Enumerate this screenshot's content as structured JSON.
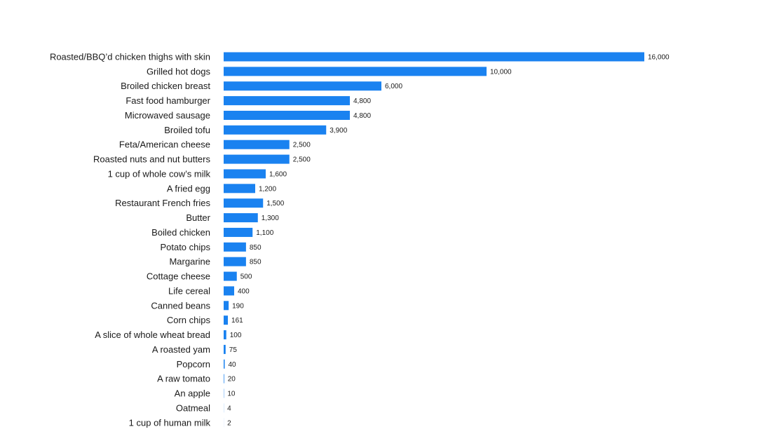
{
  "chart_data": {
    "type": "bar",
    "orientation": "horizontal",
    "categories": [
      "Roasted/BBQ’d chicken thighs with skin",
      "Grilled hot dogs",
      "Broiled chicken breast",
      "Fast food hamburger",
      "Microwaved sausage",
      "Broiled tofu",
      "Feta/American cheese",
      "Roasted nuts and nut butters",
      "1 cup of whole cow’s milk",
      "A fried egg",
      "Restaurant French fries",
      "Butter",
      "Boiled chicken",
      "Potato chips",
      "Margarine",
      "Cottage cheese",
      "Life cereal",
      "Canned beans",
      "Corn chips",
      "A slice of whole wheat bread",
      "A roasted yam",
      "Popcorn",
      "A raw tomato",
      "An apple",
      "Oatmeal",
      "1 cup of human milk"
    ],
    "values": [
      16000,
      10000,
      6000,
      4800,
      4800,
      3900,
      2500,
      2500,
      1600,
      1200,
      1500,
      1300,
      1100,
      850,
      850,
      500,
      400,
      190,
      161,
      100,
      75,
      40,
      20,
      10,
      4,
      2
    ],
    "value_labels": [
      "16,000",
      "10,000",
      "6,000",
      "4,800",
      "4,800",
      "3,900",
      "2,500",
      "2,500",
      "1,600",
      "1,200",
      "1,500",
      "1,300",
      "1,100",
      "850",
      "850",
      "500",
      "400",
      "190",
      "161",
      "100",
      "75",
      "40",
      "20",
      "10",
      "4",
      "2"
    ],
    "title": "",
    "xlabel": "",
    "ylabel": "",
    "xlim": [
      0,
      16000
    ],
    "grid": false,
    "bar_color": "#1a82f0",
    "text_color": "#1a1a1a"
  }
}
